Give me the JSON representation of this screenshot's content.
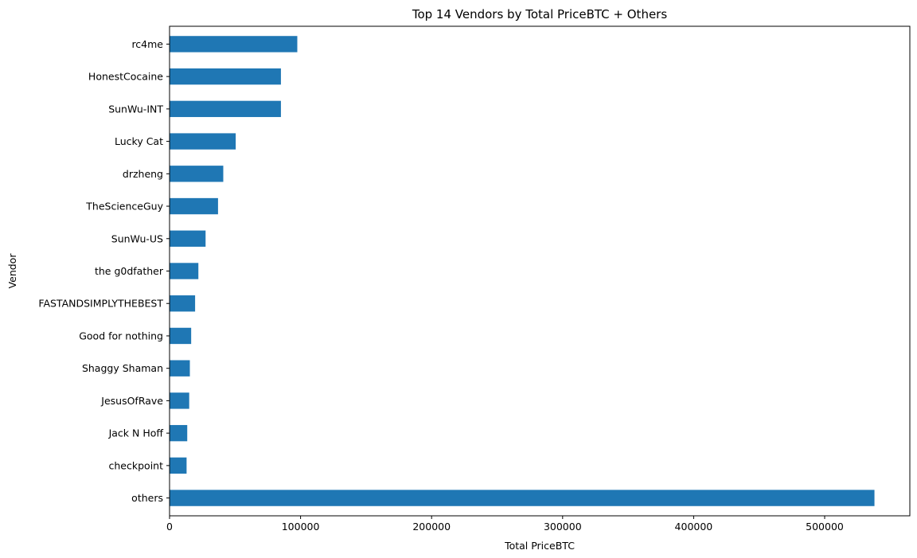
{
  "chart_data": {
    "type": "bar",
    "orientation": "horizontal",
    "title": "Top 14 Vendors by Total PriceBTC + Others",
    "xlabel": "Total PriceBTC",
    "ylabel": "Vendor",
    "categories": [
      "rc4me",
      "HonestCocaine",
      "SunWu-INT",
      "Lucky Cat",
      "drzheng",
      "TheScienceGuy",
      "SunWu-US",
      "the g0dfather",
      "FASTANDSIMPLYTHEBEST",
      "Good for nothing",
      "Shaggy Shaman",
      "JesusOfRave",
      "Jack N Hoff",
      "checkpoint",
      "others"
    ],
    "values": [
      97500,
      85000,
      85000,
      50500,
      41000,
      37000,
      27500,
      22000,
      19500,
      16500,
      15500,
      15000,
      13500,
      13000,
      538000
    ],
    "xlim": [
      0,
      565000
    ],
    "xticks": [
      0,
      100000,
      200000,
      300000,
      400000,
      500000
    ],
    "xtick_labels": [
      "0",
      "100000",
      "200000",
      "300000",
      "400000",
      "500000"
    ],
    "grid": false,
    "bar_color": "#1f77b4"
  }
}
